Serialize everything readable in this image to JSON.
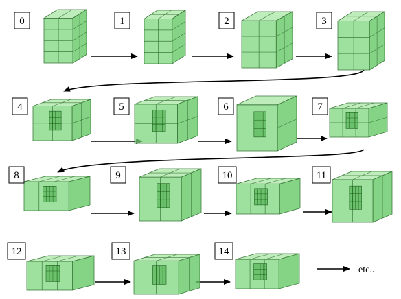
{
  "steps": [
    {
      "label": "0",
      "cubes": [
        [
          2,
          4,
          2
        ]
      ],
      "subgrid": false
    },
    {
      "label": "1",
      "cubes": [
        [
          2,
          4,
          2
        ]
      ],
      "subgrid": false
    },
    {
      "label": "2",
      "cubes": [
        [
          2,
          3,
          2
        ]
      ],
      "subgrid": false
    },
    {
      "label": "3",
      "cubes": [
        [
          2,
          3,
          2
        ]
      ],
      "subgrid": false
    },
    {
      "label": "4",
      "cubes": [
        [
          2,
          2,
          2
        ]
      ],
      "subgrid": true
    },
    {
      "label": "5",
      "cubes": [
        [
          2,
          2,
          2
        ]
      ],
      "subgrid": true
    },
    {
      "label": "6",
      "cubes": [
        [
          1,
          2,
          1
        ]
      ],
      "subgrid": true
    },
    {
      "label": "7",
      "cubes": [
        [
          3,
          2,
          1
        ]
      ],
      "subgrid": true
    },
    {
      "label": "8",
      "cubes": [
        [
          3,
          1,
          1
        ]
      ],
      "subgrid": true
    },
    {
      "label": "9",
      "cubes": [
        [
          2,
          1,
          2
        ]
      ],
      "subgrid": true
    },
    {
      "label": "10",
      "cubes": [
        [
          3,
          1,
          1
        ]
      ],
      "subgrid": true
    },
    {
      "label": "11",
      "cubes": [
        [
          2,
          1,
          2
        ]
      ],
      "subgrid": true
    },
    {
      "label": "12",
      "cubes": [
        [
          3,
          1,
          1
        ]
      ],
      "subgrid": true
    },
    {
      "label": "13",
      "cubes": [
        [
          2,
          1,
          2
        ]
      ],
      "subgrid": true
    },
    {
      "label": "14",
      "cubes": [
        [
          3,
          1,
          1
        ]
      ],
      "subgrid": true
    }
  ],
  "trailing_text": "etc..",
  "colors": {
    "face_front": "#7ed67e",
    "face_top": "#a8e6a3",
    "face_side": "#5cc45c",
    "edge": "#3c7a3c",
    "inner": "#2f9e2f",
    "arrow": "#000000"
  }
}
